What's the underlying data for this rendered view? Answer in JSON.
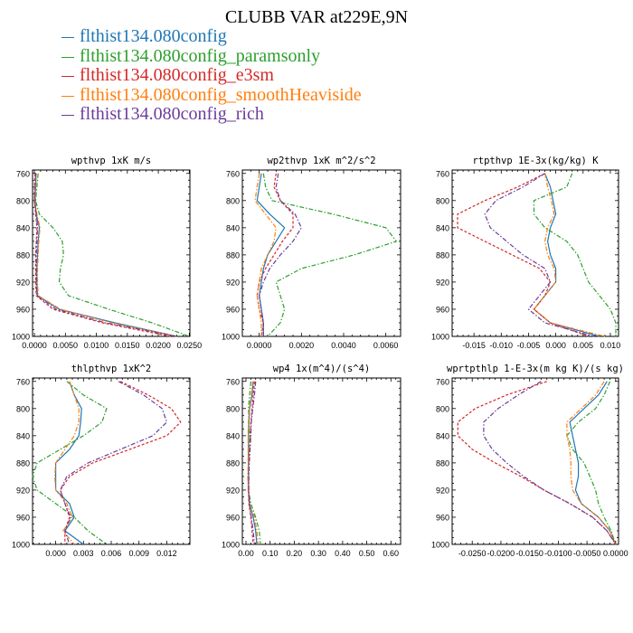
{
  "title": "CLUBB VAR at229E,9N",
  "legend": [
    {
      "label": "flthist134.080config",
      "color": "#1f77b4"
    },
    {
      "label": "flthist134.080config_paramsonly",
      "color": "#2ca02c"
    },
    {
      "label": "flthist134.080config_e3sm",
      "color": "#d62728"
    },
    {
      "label": "flthist134.080config_smoothHeaviside",
      "color": "#ff7f0e"
    },
    {
      "label": "flthist134.080config_rich",
      "color": "#6a3d9a"
    }
  ],
  "chart_data": [
    {
      "type": "line",
      "title": "wpthvp  1xK m/s",
      "y_ticks": [
        "760",
        "800",
        "840",
        "880",
        "920",
        "960",
        "1000"
      ],
      "x_ticks": [
        "0.0000",
        "0.0050",
        "0.0100",
        "0.0150",
        "0.0200",
        "0.0250"
      ],
      "xlim": [
        -0.0003,
        0.0251
      ],
      "ylim": [
        1000,
        755
      ],
      "y": [
        760,
        780,
        800,
        820,
        840,
        860,
        880,
        900,
        920,
        940,
        960,
        980,
        1000
      ],
      "series": [
        {
          "name": "flthist134.080config",
          "values": [
            0.0003,
            0.0002,
            0.0001,
            0.0003,
            0.0008,
            0.0006,
            0.0005,
            0.0004,
            0.0004,
            0.0005,
            0.004,
            0.013,
            0.023
          ]
        },
        {
          "name": "flthist134.080config_paramsonly",
          "values": [
            0.0006,
            0.0004,
            0.0002,
            0.0008,
            0.003,
            0.0045,
            0.0047,
            0.0042,
            0.004,
            0.0055,
            0.012,
            0.019,
            0.025
          ]
        },
        {
          "name": "flthist134.080config_e3sm",
          "values": [
            0.0001,
            0.0,
            0.0,
            0.0002,
            0.0004,
            0.0003,
            0.0002,
            0.0002,
            0.0002,
            0.0003,
            0.003,
            0.011,
            0.022
          ]
        },
        {
          "name": "flthist134.080config_smoothHeaviside",
          "values": [
            0.0003,
            0.0002,
            0.0001,
            0.0004,
            0.0009,
            0.0007,
            0.0006,
            0.0005,
            0.0005,
            0.0006,
            0.0042,
            0.0125,
            0.023
          ]
        },
        {
          "name": "flthist134.080config_rich",
          "values": [
            0.0002,
            0.0001,
            0.0,
            0.0003,
            0.0005,
            0.0004,
            0.0003,
            0.0003,
            0.0003,
            0.0004,
            0.0035,
            0.0115,
            0.023
          ]
        }
      ]
    },
    {
      "type": "line",
      "title": "wp2thvp  1xK m^2/s^2",
      "y_ticks": [
        "760",
        "800",
        "840",
        "880",
        "920",
        "960",
        "1000"
      ],
      "x_ticks": [
        "0.0000",
        "0.0020",
        "0.0040",
        "0.0060"
      ],
      "xlim": [
        -0.0008,
        0.0067
      ],
      "ylim": [
        1000,
        755
      ],
      "y": [
        760,
        780,
        800,
        820,
        840,
        860,
        880,
        900,
        920,
        940,
        960,
        980,
        1000
      ],
      "series": [
        {
          "name": "flthist134.080config",
          "values": [
            0.0001,
            0.0,
            -0.0001,
            0.0005,
            0.0012,
            0.0008,
            0.0004,
            0.0002,
            0.0001,
            0.0,
            0.0001,
            0.0002,
            0.0002
          ]
        },
        {
          "name": "flthist134.080config_paramsonly",
          "values": [
            0.0002,
            0.0003,
            0.0006,
            0.0035,
            0.006,
            0.0065,
            0.0045,
            0.002,
            0.0008,
            0.001,
            0.0012,
            0.001,
            0.0004
          ]
        },
        {
          "name": "flthist134.080config_e3sm",
          "values": [
            0.0008,
            0.0007,
            0.001,
            0.0016,
            0.0016,
            0.0011,
            0.0007,
            0.0003,
            0.0,
            -0.0001,
            0.0,
            0.0002,
            0.0001
          ]
        },
        {
          "name": "flthist134.080config_smoothHeaviside",
          "values": [
            0.0,
            -0.0001,
            -0.0002,
            0.0003,
            0.0008,
            0.0007,
            0.0004,
            0.0001,
            0.0,
            -0.0001,
            0.0,
            0.0001,
            0.0001
          ]
        },
        {
          "name": "flthist134.080config_rich",
          "values": [
            0.0009,
            0.0008,
            0.001,
            0.0017,
            0.002,
            0.0016,
            0.001,
            0.0005,
            0.0002,
            0.0,
            0.0001,
            0.0002,
            0.0002
          ]
        }
      ]
    },
    {
      "type": "line",
      "title": "rtpthvp  1E-3x(kg/kg) K",
      "y_ticks": [
        "760",
        "800",
        "840",
        "880",
        "920",
        "960",
        "1000"
      ],
      "x_ticks": [
        "-0.015",
        "-0.010",
        "-0.005",
        "0.000",
        "0.005",
        "0.010"
      ],
      "xlim": [
        -0.019,
        0.0115
      ],
      "ylim": [
        1000,
        755
      ],
      "y": [
        760,
        780,
        800,
        820,
        840,
        860,
        880,
        900,
        920,
        940,
        960,
        980,
        1000
      ],
      "series": [
        {
          "name": "flthist134.080config",
          "values": [
            -0.002,
            -0.001,
            -0.0005,
            0.0,
            -0.001,
            -0.0015,
            -0.001,
            0.0,
            0.0,
            -0.002,
            -0.004,
            -0.001,
            0.008
          ]
        },
        {
          "name": "flthist134.080config_paramsonly",
          "values": [
            0.003,
            0.002,
            -0.004,
            -0.004,
            -0.002,
            0.002,
            0.004,
            0.005,
            0.006,
            0.008,
            0.01,
            0.011,
            0.011
          ]
        },
        {
          "name": "flthist134.080config_e3sm",
          "values": [
            -0.002,
            -0.007,
            -0.013,
            -0.018,
            -0.018,
            -0.013,
            -0.008,
            -0.003,
            -0.001,
            -0.002,
            -0.004,
            -0.001,
            0.006
          ]
        },
        {
          "name": "flthist134.080config_smoothHeaviside",
          "values": [
            -0.002,
            -0.0015,
            -0.0008,
            -0.0003,
            -0.0015,
            -0.002,
            -0.0015,
            -0.0003,
            0.0,
            -0.002,
            -0.004,
            -0.001,
            0.009
          ]
        },
        {
          "name": "flthist134.080config_rich",
          "values": [
            -0.002,
            -0.006,
            -0.011,
            -0.013,
            -0.012,
            -0.009,
            -0.006,
            -0.002,
            -0.001,
            -0.003,
            -0.005,
            -0.002,
            0.007
          ]
        }
      ]
    },
    {
      "type": "line",
      "title": "thlpthvp  1xK^2",
      "y_ticks": [
        "760",
        "800",
        "840",
        "880",
        "920",
        "960",
        "1000"
      ],
      "x_ticks": [
        "0.000",
        "0.003",
        "0.006",
        "0.009",
        "0.012"
      ],
      "xlim": [
        -0.0025,
        0.0145
      ],
      "ylim": [
        1000,
        755
      ],
      "y": [
        760,
        780,
        800,
        820,
        840,
        860,
        880,
        900,
        920,
        940,
        960,
        980,
        1000
      ],
      "series": [
        {
          "name": "flthist134.080config",
          "values": [
            0.0015,
            0.002,
            0.0028,
            0.0027,
            0.0025,
            0.0015,
            0.0,
            0.0,
            0.0,
            0.0015,
            0.002,
            0.001,
            0.003
          ]
        },
        {
          "name": "flthist134.080config_paramsonly",
          "values": [
            0.0012,
            0.003,
            0.0055,
            0.005,
            0.003,
            0.0005,
            -0.002,
            -0.0025,
            -0.002,
            0.0,
            0.002,
            0.0035,
            0.0055
          ]
        },
        {
          "name": "flthist134.080config_e3sm",
          "values": [
            0.007,
            0.01,
            0.0125,
            0.0135,
            0.012,
            0.008,
            0.004,
            0.0015,
            0.0005,
            0.001,
            0.0015,
            0.001,
            0.001
          ]
        },
        {
          "name": "flthist134.080config_smoothHeaviside",
          "values": [
            0.0015,
            0.002,
            0.0025,
            0.0025,
            0.002,
            0.001,
            0.0,
            -0.0001,
            0.0,
            0.0012,
            0.0018,
            0.0008,
            0.002
          ]
        },
        {
          "name": "flthist134.080config_rich",
          "values": [
            0.0068,
            0.0095,
            0.0115,
            0.012,
            0.0105,
            0.007,
            0.0035,
            0.0012,
            0.0005,
            0.001,
            0.0016,
            0.001,
            0.0015
          ]
        }
      ]
    },
    {
      "type": "line",
      "title": "wp4  1x(m^4)/(s^4)",
      "y_ticks": [
        "760",
        "800",
        "840",
        "880",
        "920",
        "960",
        "1000"
      ],
      "x_ticks": [
        "0.00",
        "0.10",
        "0.20",
        "0.30",
        "0.40",
        "0.50",
        "0.60"
      ],
      "xlim": [
        -0.015,
        0.64
      ],
      "ylim": [
        1000,
        755
      ],
      "y": [
        760,
        780,
        800,
        820,
        840,
        860,
        880,
        900,
        920,
        940,
        960,
        980,
        1000
      ],
      "series": [
        {
          "name": "flthist134.080config",
          "values": [
            0.03,
            0.025,
            0.015,
            0.012,
            0.01,
            0.01,
            0.01,
            0.01,
            0.01,
            0.015,
            0.03,
            0.04,
            0.045
          ]
        },
        {
          "name": "flthist134.080config_paramsonly",
          "values": [
            0.02,
            0.015,
            0.01,
            0.012,
            0.015,
            0.015,
            0.01,
            0.008,
            0.01,
            0.02,
            0.04,
            0.055,
            0.06
          ]
        },
        {
          "name": "flthist134.080config_e3sm",
          "values": [
            0.035,
            0.03,
            0.025,
            0.02,
            0.018,
            0.015,
            0.012,
            0.01,
            0.01,
            0.012,
            0.02,
            0.025,
            0.03
          ]
        },
        {
          "name": "flthist134.080config_smoothHeaviside",
          "values": [
            0.028,
            0.022,
            0.013,
            0.01,
            0.009,
            0.009,
            0.009,
            0.009,
            0.009,
            0.014,
            0.035,
            0.045,
            0.05
          ]
        },
        {
          "name": "flthist134.080config_rich",
          "values": [
            0.04,
            0.035,
            0.028,
            0.022,
            0.02,
            0.017,
            0.014,
            0.012,
            0.012,
            0.014,
            0.022,
            0.03,
            0.035
          ]
        }
      ]
    },
    {
      "type": "line",
      "title": "wprtpthlp  1-E-3x(m kg K)/(s kg)",
      "y_ticks": [
        "760",
        "800",
        "840",
        "880",
        "920",
        "960",
        "1000"
      ],
      "x_ticks": [
        "-0.0250",
        "-0.0200",
        "-0.0150",
        "-0.0100",
        "-0.0050",
        "0.0000"
      ],
      "xlim": [
        -0.0285,
        0.0005
      ],
      "ylim": [
        1000,
        755
      ],
      "y": [
        760,
        780,
        800,
        820,
        840,
        860,
        880,
        900,
        920,
        940,
        960,
        980,
        1000
      ],
      "series": [
        {
          "name": "flthist134.080config",
          "values": [
            -0.0015,
            -0.003,
            -0.0055,
            -0.008,
            -0.0075,
            -0.007,
            -0.0065,
            -0.0065,
            -0.007,
            -0.006,
            -0.003,
            -0.001,
            0.0
          ]
        },
        {
          "name": "flthist134.080config_paramsonly",
          "values": [
            -0.001,
            -0.002,
            -0.0035,
            -0.0065,
            -0.0085,
            -0.0075,
            -0.0055,
            -0.0045,
            -0.0035,
            -0.003,
            -0.002,
            -0.0008,
            0.0
          ]
        },
        {
          "name": "flthist134.080config_e3sm",
          "values": [
            -0.012,
            -0.019,
            -0.0245,
            -0.0275,
            -0.0275,
            -0.025,
            -0.021,
            -0.0165,
            -0.0125,
            -0.008,
            -0.004,
            -0.0015,
            0.0
          ]
        },
        {
          "name": "flthist134.080config_smoothHeaviside",
          "values": [
            -0.002,
            -0.0035,
            -0.006,
            -0.0085,
            -0.0085,
            -0.008,
            -0.0078,
            -0.0078,
            -0.0075,
            -0.006,
            -0.003,
            -0.001,
            0.0
          ]
        },
        {
          "name": "flthist134.080config_rich",
          "values": [
            -0.013,
            -0.017,
            -0.0205,
            -0.023,
            -0.023,
            -0.0215,
            -0.019,
            -0.016,
            -0.0125,
            -0.008,
            -0.004,
            -0.0015,
            0.0
          ]
        }
      ]
    }
  ]
}
